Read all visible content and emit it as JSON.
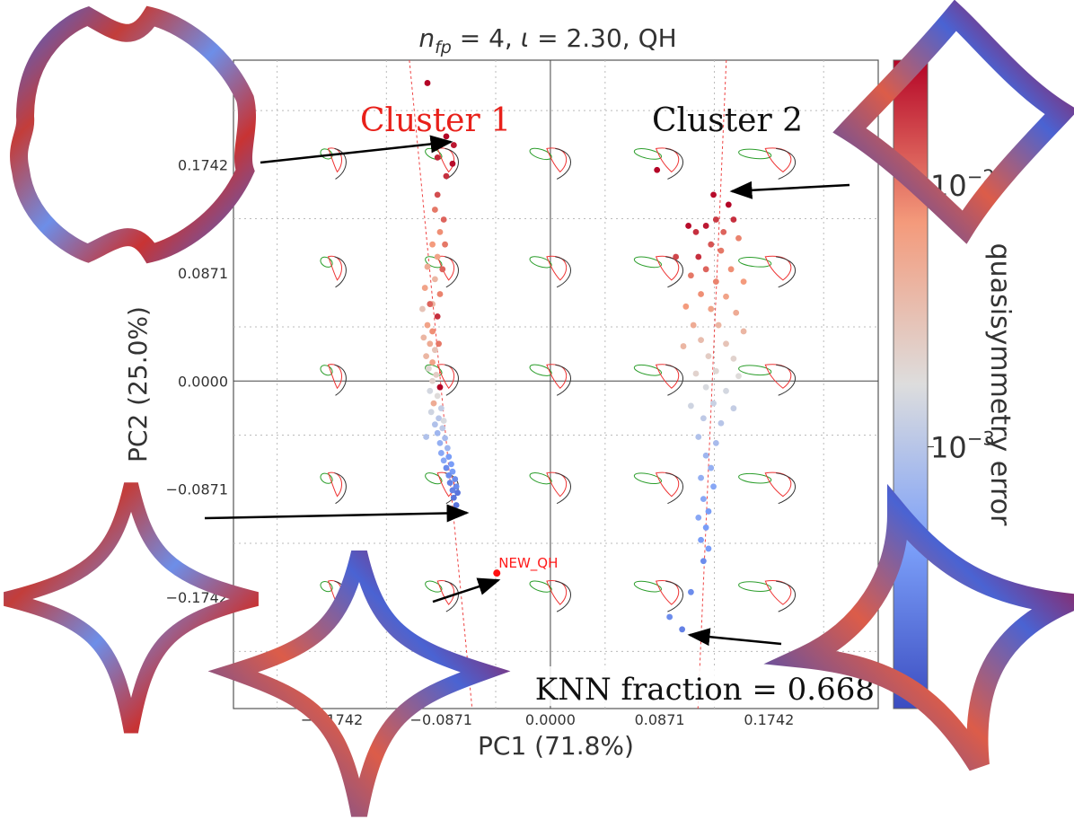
{
  "chart_data": {
    "type": "scatter",
    "title_parts": {
      "lhs": "n",
      "sub": "fp",
      "mid": " = 4, ",
      "iota": "ι",
      "rhs": " = 2.30, QH"
    },
    "xlabel": "PC1 (71.8%)",
    "ylabel": "PC2 (25.0%)",
    "xlim": [
      -0.2526,
      0.2613
    ],
    "ylim": [
      -0.2638,
      0.2584
    ],
    "xticks": [
      -0.1742,
      -0.0871,
      0.0,
      0.0871,
      0.1742
    ],
    "xtick_labels": [
      "−0.1742",
      "−0.0871",
      "0.0000",
      "0.0871",
      "0.1742"
    ],
    "yticks": [
      -0.1742,
      -0.0871,
      0.0,
      0.0871,
      0.1742
    ],
    "ytick_labels": [
      "−0.1742",
      "−0.0871",
      "0.0000",
      "0.0871",
      "0.1742"
    ],
    "grid": true,
    "colorbar": {
      "label": "quasisymmetry error",
      "scale": "log",
      "min": 0.0001,
      "max": 0.03,
      "ticks": [
        {
          "value": 0.01,
          "base": "10",
          "exp": "−2"
        },
        {
          "value": 0.001,
          "base": "10",
          "exp": "−3"
        }
      ],
      "colormap": "coolwarm"
    },
    "annotations": {
      "cluster1": "Cluster 1",
      "cluster2": "Cluster 2",
      "new_point": "NEW_QH",
      "knn": "KNN fraction = 0.668"
    },
    "new_point": {
      "x": -0.0427,
      "y": -0.1547
    },
    "fit_lines": [
      {
        "x1": -0.1124,
        "y1": 0.2584,
        "x2": -0.0624,
        "y2": -0.2638
      },
      {
        "x1": 0.1402,
        "y1": 0.2584,
        "x2": 0.1176,
        "y2": -0.2638
      }
    ],
    "series": [
      {
        "name": "",
        "points": [
          {
            "x": -0.098,
            "y": 0.24,
            "e": 0.03
          },
          {
            "x": -0.083,
            "y": 0.197,
            "e": 0.03
          },
          {
            "x": -0.077,
            "y": 0.19,
            "e": 0.025
          },
          {
            "x": -0.09,
            "y": 0.18,
            "e": 0.022
          },
          {
            "x": -0.078,
            "y": 0.175,
            "e": 0.028
          },
          {
            "x": -0.083,
            "y": 0.165,
            "e": 0.02
          },
          {
            "x": -0.09,
            "y": 0.15,
            "e": 0.015
          },
          {
            "x": -0.092,
            "y": 0.138,
            "e": 0.01
          },
          {
            "x": -0.085,
            "y": 0.13,
            "e": 0.012
          },
          {
            "x": -0.088,
            "y": 0.12,
            "e": 0.008
          },
          {
            "x": -0.094,
            "y": 0.11,
            "e": 0.007
          },
          {
            "x": -0.084,
            "y": 0.11,
            "e": 0.01
          },
          {
            "x": -0.09,
            "y": 0.1,
            "e": 0.006
          },
          {
            "x": -0.098,
            "y": 0.092,
            "e": 0.005
          },
          {
            "x": -0.086,
            "y": 0.09,
            "e": 0.012
          },
          {
            "x": -0.092,
            "y": 0.082,
            "e": 0.004
          },
          {
            "x": -0.1,
            "y": 0.075,
            "e": 0.006
          },
          {
            "x": -0.088,
            "y": 0.07,
            "e": 0.009
          },
          {
            "x": -0.094,
            "y": 0.062,
            "e": 0.004
          },
          {
            "x": -0.102,
            "y": 0.058,
            "e": 0.003
          },
          {
            "x": -0.09,
            "y": 0.052,
            "e": 0.02
          },
          {
            "x": -0.098,
            "y": 0.045,
            "e": 0.006
          },
          {
            "x": -0.094,
            "y": 0.04,
            "e": 0.008
          },
          {
            "x": -0.101,
            "y": 0.035,
            "e": 0.004
          },
          {
            "x": -0.096,
            "y": 0.03,
            "e": 0.005
          },
          {
            "x": -0.092,
            "y": 0.025,
            "e": 0.003
          },
          {
            "x": -0.099,
            "y": 0.02,
            "e": 0.004
          },
          {
            "x": -0.094,
            "y": 0.015,
            "e": 0.006
          },
          {
            "x": -0.097,
            "y": 0.01,
            "e": 0.002
          },
          {
            "x": -0.091,
            "y": 0.005,
            "e": 0.0025
          },
          {
            "x": -0.094,
            "y": 0.0,
            "e": 0.0022
          },
          {
            "x": -0.088,
            "y": -0.005,
            "e": 0.03
          },
          {
            "x": -0.096,
            "y": -0.008,
            "e": 0.0015
          },
          {
            "x": -0.09,
            "y": -0.012,
            "e": 0.0018
          },
          {
            "x": -0.093,
            "y": -0.018,
            "e": 0.005
          },
          {
            "x": -0.087,
            "y": -0.022,
            "e": 0.0012
          },
          {
            "x": -0.095,
            "y": -0.025,
            "e": 0.0014
          },
          {
            "x": -0.089,
            "y": -0.03,
            "e": 0.001
          },
          {
            "x": -0.092,
            "y": -0.035,
            "e": 0.0009
          },
          {
            "x": -0.086,
            "y": -0.038,
            "e": 0.0011
          },
          {
            "x": -0.09,
            "y": -0.042,
            "e": 0.0007
          },
          {
            "x": -0.084,
            "y": -0.046,
            "e": 0.0008
          },
          {
            "x": -0.088,
            "y": -0.05,
            "e": 0.0006
          },
          {
            "x": -0.082,
            "y": -0.054,
            "e": 0.0007
          },
          {
            "x": -0.087,
            "y": -0.058,
            "e": 0.0005
          },
          {
            "x": -0.081,
            "y": -0.061,
            "e": 0.0004
          },
          {
            "x": -0.085,
            "y": -0.064,
            "e": 0.0005
          },
          {
            "x": -0.079,
            "y": -0.067,
            "e": 0.0004
          },
          {
            "x": -0.083,
            "y": -0.07,
            "e": 0.0003
          },
          {
            "x": -0.078,
            "y": -0.073,
            "e": 0.0004
          },
          {
            "x": -0.081,
            "y": -0.076,
            "e": 0.0003
          },
          {
            "x": -0.076,
            "y": -0.079,
            "e": 0.0003
          },
          {
            "x": -0.08,
            "y": -0.082,
            "e": 0.00025
          },
          {
            "x": -0.075,
            "y": -0.085,
            "e": 0.0003
          },
          {
            "x": -0.078,
            "y": -0.088,
            "e": 0.00025
          },
          {
            "x": -0.074,
            "y": -0.09,
            "e": 0.0002
          },
          {
            "x": -0.077,
            "y": -0.094,
            "e": 0.0002
          },
          {
            "x": -0.075,
            "y": -0.1,
            "e": 0.0002
          },
          {
            "x": -0.096,
            "y": 0.062,
            "e": 0.012
          },
          {
            "x": -0.089,
            "y": 0.03,
            "e": 0.01
          },
          {
            "x": -0.099,
            "y": -0.045,
            "e": 0.0009
          },
          {
            "x": -0.085,
            "y": -0.032,
            "e": 0.0016
          },
          {
            "x": 0.085,
            "y": 0.17,
            "e": 0.03
          },
          {
            "x": 0.13,
            "y": 0.15,
            "e": 0.028
          },
          {
            "x": 0.142,
            "y": 0.142,
            "e": 0.03
          },
          {
            "x": 0.146,
            "y": 0.13,
            "e": 0.02
          },
          {
            "x": 0.132,
            "y": 0.13,
            "e": 0.018
          },
          {
            "x": 0.124,
            "y": 0.125,
            "e": 0.025
          },
          {
            "x": 0.116,
            "y": 0.12,
            "e": 0.02
          },
          {
            "x": 0.11,
            "y": 0.125,
            "e": 0.028
          },
          {
            "x": 0.138,
            "y": 0.12,
            "e": 0.012
          },
          {
            "x": 0.128,
            "y": 0.11,
            "e": 0.014
          },
          {
            "x": 0.1,
            "y": 0.1,
            "e": 0.016
          },
          {
            "x": 0.118,
            "y": 0.1,
            "e": 0.02
          },
          {
            "x": 0.136,
            "y": 0.105,
            "e": 0.01
          },
          {
            "x": 0.15,
            "y": 0.115,
            "e": 0.009
          },
          {
            "x": 0.124,
            "y": 0.09,
            "e": 0.012
          },
          {
            "x": 0.144,
            "y": 0.09,
            "e": 0.008
          },
          {
            "x": 0.112,
            "y": 0.085,
            "e": 0.01
          },
          {
            "x": 0.132,
            "y": 0.08,
            "e": 0.009
          },
          {
            "x": 0.154,
            "y": 0.08,
            "e": 0.007
          },
          {
            "x": 0.12,
            "y": 0.07,
            "e": 0.008
          },
          {
            "x": 0.14,
            "y": 0.068,
            "e": 0.006
          },
          {
            "x": 0.108,
            "y": 0.06,
            "e": 0.007
          },
          {
            "x": 0.128,
            "y": 0.058,
            "e": 0.006
          },
          {
            "x": 0.148,
            "y": 0.055,
            "e": 0.005
          },
          {
            "x": 0.114,
            "y": 0.045,
            "e": 0.005
          },
          {
            "x": 0.134,
            "y": 0.045,
            "e": 0.004
          },
          {
            "x": 0.154,
            "y": 0.04,
            "e": 0.004
          },
          {
            "x": 0.12,
            "y": 0.033,
            "e": 0.0035
          },
          {
            "x": 0.14,
            "y": 0.03,
            "e": 0.003
          },
          {
            "x": 0.106,
            "y": 0.028,
            "e": 0.004
          },
          {
            "x": 0.126,
            "y": 0.02,
            "e": 0.0025
          },
          {
            "x": 0.146,
            "y": 0.018,
            "e": 0.0022
          },
          {
            "x": 0.132,
            "y": 0.008,
            "e": 0.002
          },
          {
            "x": 0.116,
            "y": 0.006,
            "e": 0.0022
          },
          {
            "x": 0.15,
            "y": 0.004,
            "e": 0.0018
          },
          {
            "x": 0.124,
            "y": -0.005,
            "e": 0.0016
          },
          {
            "x": 0.14,
            "y": -0.008,
            "e": 0.0015
          },
          {
            "x": 0.13,
            "y": -0.018,
            "e": 0.0013
          },
          {
            "x": 0.112,
            "y": -0.02,
            "e": 0.0014
          },
          {
            "x": 0.146,
            "y": -0.022,
            "e": 0.0012
          },
          {
            "x": 0.122,
            "y": -0.03,
            "e": 0.0011
          },
          {
            "x": 0.136,
            "y": -0.034,
            "e": 0.001
          },
          {
            "x": 0.118,
            "y": -0.045,
            "e": 0.0009
          },
          {
            "x": 0.132,
            "y": -0.05,
            "e": 0.0008
          },
          {
            "x": 0.124,
            "y": -0.06,
            "e": 0.0007
          },
          {
            "x": 0.128,
            "y": -0.07,
            "e": 0.0006
          },
          {
            "x": 0.12,
            "y": -0.078,
            "e": 0.0006
          },
          {
            "x": 0.13,
            "y": -0.085,
            "e": 0.0005
          },
          {
            "x": 0.122,
            "y": -0.095,
            "e": 0.0005
          },
          {
            "x": 0.126,
            "y": -0.105,
            "e": 0.0004
          },
          {
            "x": 0.118,
            "y": -0.11,
            "e": 0.0005
          },
          {
            "x": 0.124,
            "y": -0.118,
            "e": 0.0004
          },
          {
            "x": 0.12,
            "y": -0.128,
            "e": 0.0004
          },
          {
            "x": 0.126,
            "y": -0.135,
            "e": 0.0004
          },
          {
            "x": 0.122,
            "y": -0.145,
            "e": 0.0003
          },
          {
            "x": 0.112,
            "y": -0.17,
            "e": 0.0003
          },
          {
            "x": 0.095,
            "y": -0.19,
            "e": 0.0003
          },
          {
            "x": 0.105,
            "y": -0.2,
            "e": 0.00025
          }
        ]
      }
    ]
  }
}
